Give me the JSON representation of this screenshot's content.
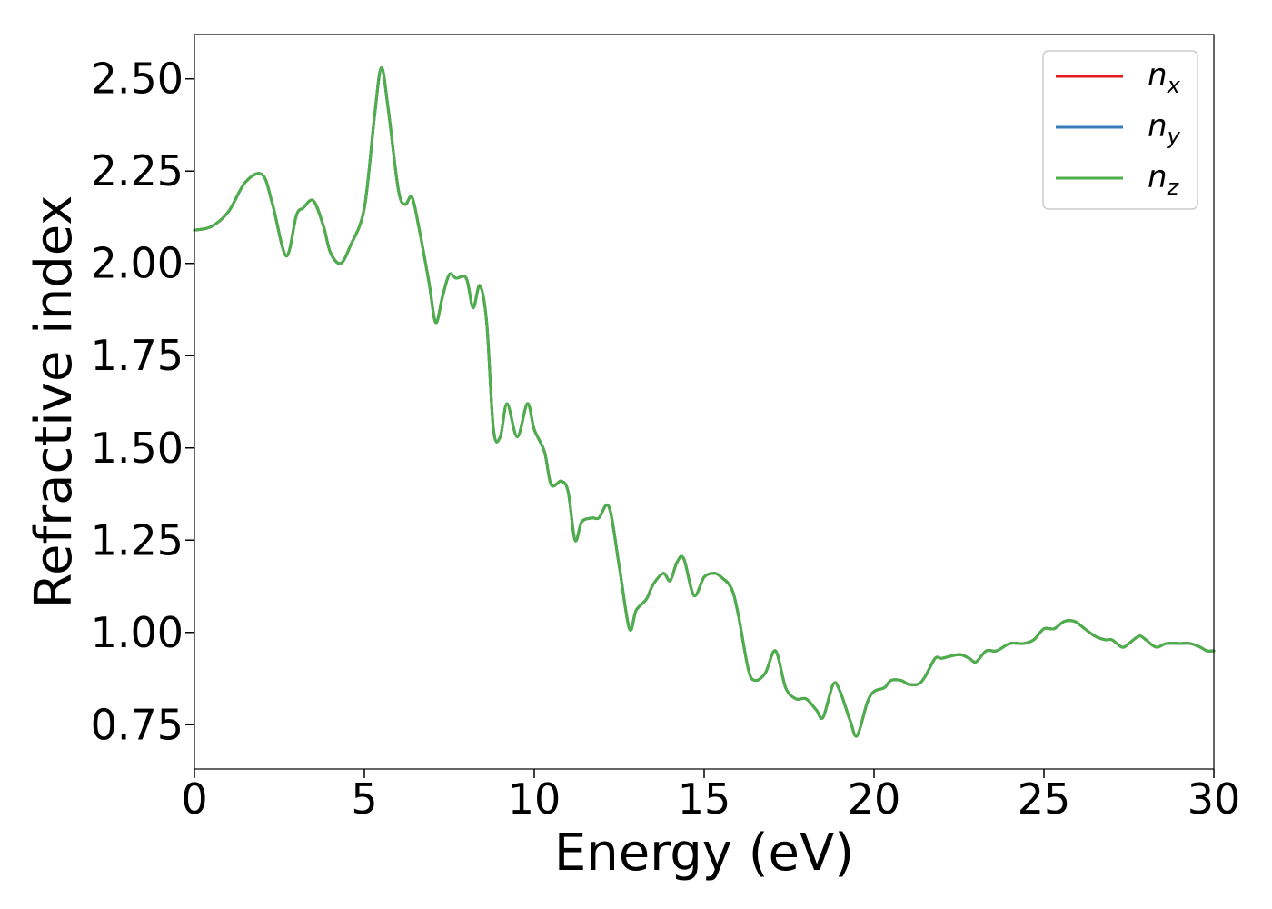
{
  "chart_data": {
    "type": "line",
    "title": "",
    "xlabel": "Energy (eV)",
    "ylabel": "Refractive index",
    "xlim": [
      0,
      30
    ],
    "ylim": [
      0.63,
      2.62
    ],
    "x_ticks": [
      0,
      5,
      10,
      15,
      20,
      25,
      30
    ],
    "y_ticks": [
      0.75,
      1.0,
      1.25,
      1.5,
      1.75,
      2.0,
      2.25,
      2.5
    ],
    "x_tick_labels": [
      "0",
      "5",
      "10",
      "15",
      "20",
      "25",
      "30"
    ],
    "y_tick_labels": [
      "0.75",
      "1.00",
      "1.25",
      "1.50",
      "1.75",
      "2.00",
      "2.25",
      "2.50"
    ],
    "grid": false,
    "legend_position": "top-right",
    "x": [
      0,
      0.5,
      1.0,
      1.5,
      2.0,
      2.3,
      2.7,
      3.0,
      3.2,
      3.5,
      3.8,
      4.0,
      4.3,
      4.6,
      5.0,
      5.3,
      5.5,
      5.7,
      6.0,
      6.2,
      6.4,
      6.6,
      6.9,
      7.1,
      7.3,
      7.5,
      7.7,
      8.0,
      8.2,
      8.4,
      8.6,
      8.8,
      9.0,
      9.2,
      9.5,
      9.8,
      10.0,
      10.3,
      10.5,
      10.8,
      11.0,
      11.2,
      11.4,
      11.7,
      11.9,
      12.2,
      12.5,
      12.8,
      13.0,
      13.3,
      13.5,
      13.8,
      14.0,
      14.2,
      14.4,
      14.7,
      15.0,
      15.3,
      15.5,
      15.8,
      16.0,
      16.3,
      16.5,
      16.8,
      17.1,
      17.4,
      17.7,
      18.0,
      18.3,
      18.5,
      18.8,
      19.0,
      19.3,
      19.5,
      19.8,
      20.0,
      20.3,
      20.5,
      20.8,
      21.0,
      21.3,
      21.5,
      21.8,
      22.0,
      22.5,
      22.8,
      23.0,
      23.3,
      23.6,
      24.0,
      24.4,
      24.7,
      25.0,
      25.3,
      25.6,
      25.9,
      26.2,
      26.5,
      26.8,
      27.0,
      27.3,
      27.5,
      27.8,
      28.0,
      28.3,
      28.6,
      29.0,
      29.3,
      29.6,
      29.8,
      30.0
    ],
    "series": [
      {
        "name": "n_x",
        "name_base": "n",
        "name_sub": "x",
        "color": "#e41a1c",
        "y": [
          2.09,
          2.1,
          2.14,
          2.22,
          2.24,
          2.16,
          2.02,
          2.13,
          2.15,
          2.17,
          2.1,
          2.03,
          2.0,
          2.05,
          2.15,
          2.4,
          2.53,
          2.42,
          2.2,
          2.16,
          2.18,
          2.1,
          1.95,
          1.84,
          1.91,
          1.97,
          1.96,
          1.96,
          1.88,
          1.94,
          1.84,
          1.55,
          1.53,
          1.62,
          1.53,
          1.62,
          1.55,
          1.49,
          1.4,
          1.41,
          1.38,
          1.25,
          1.3,
          1.31,
          1.31,
          1.34,
          1.18,
          1.01,
          1.06,
          1.09,
          1.13,
          1.16,
          1.14,
          1.19,
          1.2,
          1.1,
          1.15,
          1.16,
          1.15,
          1.12,
          1.05,
          0.9,
          0.87,
          0.89,
          0.95,
          0.85,
          0.82,
          0.82,
          0.79,
          0.77,
          0.86,
          0.84,
          0.76,
          0.72,
          0.81,
          0.84,
          0.85,
          0.87,
          0.87,
          0.86,
          0.86,
          0.88,
          0.93,
          0.93,
          0.94,
          0.93,
          0.92,
          0.95,
          0.95,
          0.97,
          0.97,
          0.98,
          1.01,
          1.01,
          1.03,
          1.03,
          1.01,
          0.99,
          0.98,
          0.98,
          0.96,
          0.97,
          0.99,
          0.98,
          0.96,
          0.97,
          0.97,
          0.97,
          0.96,
          0.95,
          0.95
        ]
      },
      {
        "name": "n_y",
        "name_base": "n",
        "name_sub": "y",
        "color": "#377eb8",
        "y": [
          2.09,
          2.1,
          2.14,
          2.22,
          2.24,
          2.16,
          2.02,
          2.13,
          2.15,
          2.17,
          2.1,
          2.03,
          2.0,
          2.05,
          2.15,
          2.4,
          2.53,
          2.42,
          2.2,
          2.16,
          2.18,
          2.1,
          1.95,
          1.84,
          1.91,
          1.97,
          1.96,
          1.96,
          1.88,
          1.94,
          1.84,
          1.55,
          1.53,
          1.62,
          1.53,
          1.62,
          1.55,
          1.49,
          1.4,
          1.41,
          1.38,
          1.25,
          1.3,
          1.31,
          1.31,
          1.34,
          1.18,
          1.01,
          1.06,
          1.09,
          1.13,
          1.16,
          1.14,
          1.19,
          1.2,
          1.1,
          1.15,
          1.16,
          1.15,
          1.12,
          1.05,
          0.9,
          0.87,
          0.89,
          0.95,
          0.85,
          0.82,
          0.82,
          0.79,
          0.77,
          0.86,
          0.84,
          0.76,
          0.72,
          0.81,
          0.84,
          0.85,
          0.87,
          0.87,
          0.86,
          0.86,
          0.88,
          0.93,
          0.93,
          0.94,
          0.93,
          0.92,
          0.95,
          0.95,
          0.97,
          0.97,
          0.98,
          1.01,
          1.01,
          1.03,
          1.03,
          1.01,
          0.99,
          0.98,
          0.98,
          0.96,
          0.97,
          0.99,
          0.98,
          0.96,
          0.97,
          0.97,
          0.97,
          0.96,
          0.95,
          0.95
        ]
      },
      {
        "name": "n_z",
        "name_base": "n",
        "name_sub": "z",
        "color": "#4daf4a",
        "y": [
          2.09,
          2.1,
          2.14,
          2.22,
          2.24,
          2.16,
          2.02,
          2.13,
          2.15,
          2.17,
          2.1,
          2.03,
          2.0,
          2.05,
          2.15,
          2.4,
          2.53,
          2.42,
          2.2,
          2.16,
          2.18,
          2.1,
          1.95,
          1.84,
          1.91,
          1.97,
          1.96,
          1.96,
          1.88,
          1.94,
          1.84,
          1.55,
          1.53,
          1.62,
          1.53,
          1.62,
          1.55,
          1.49,
          1.4,
          1.41,
          1.38,
          1.25,
          1.3,
          1.31,
          1.31,
          1.34,
          1.18,
          1.01,
          1.06,
          1.09,
          1.13,
          1.16,
          1.14,
          1.19,
          1.2,
          1.1,
          1.15,
          1.16,
          1.15,
          1.12,
          1.05,
          0.9,
          0.87,
          0.89,
          0.95,
          0.85,
          0.82,
          0.82,
          0.79,
          0.77,
          0.86,
          0.84,
          0.76,
          0.72,
          0.81,
          0.84,
          0.85,
          0.87,
          0.87,
          0.86,
          0.86,
          0.88,
          0.93,
          0.93,
          0.94,
          0.93,
          0.92,
          0.95,
          0.95,
          0.97,
          0.97,
          0.98,
          1.01,
          1.01,
          1.03,
          1.03,
          1.01,
          0.99,
          0.98,
          0.98,
          0.96,
          0.97,
          0.99,
          0.98,
          0.96,
          0.97,
          0.97,
          0.97,
          0.96,
          0.95,
          0.95
        ]
      }
    ]
  }
}
